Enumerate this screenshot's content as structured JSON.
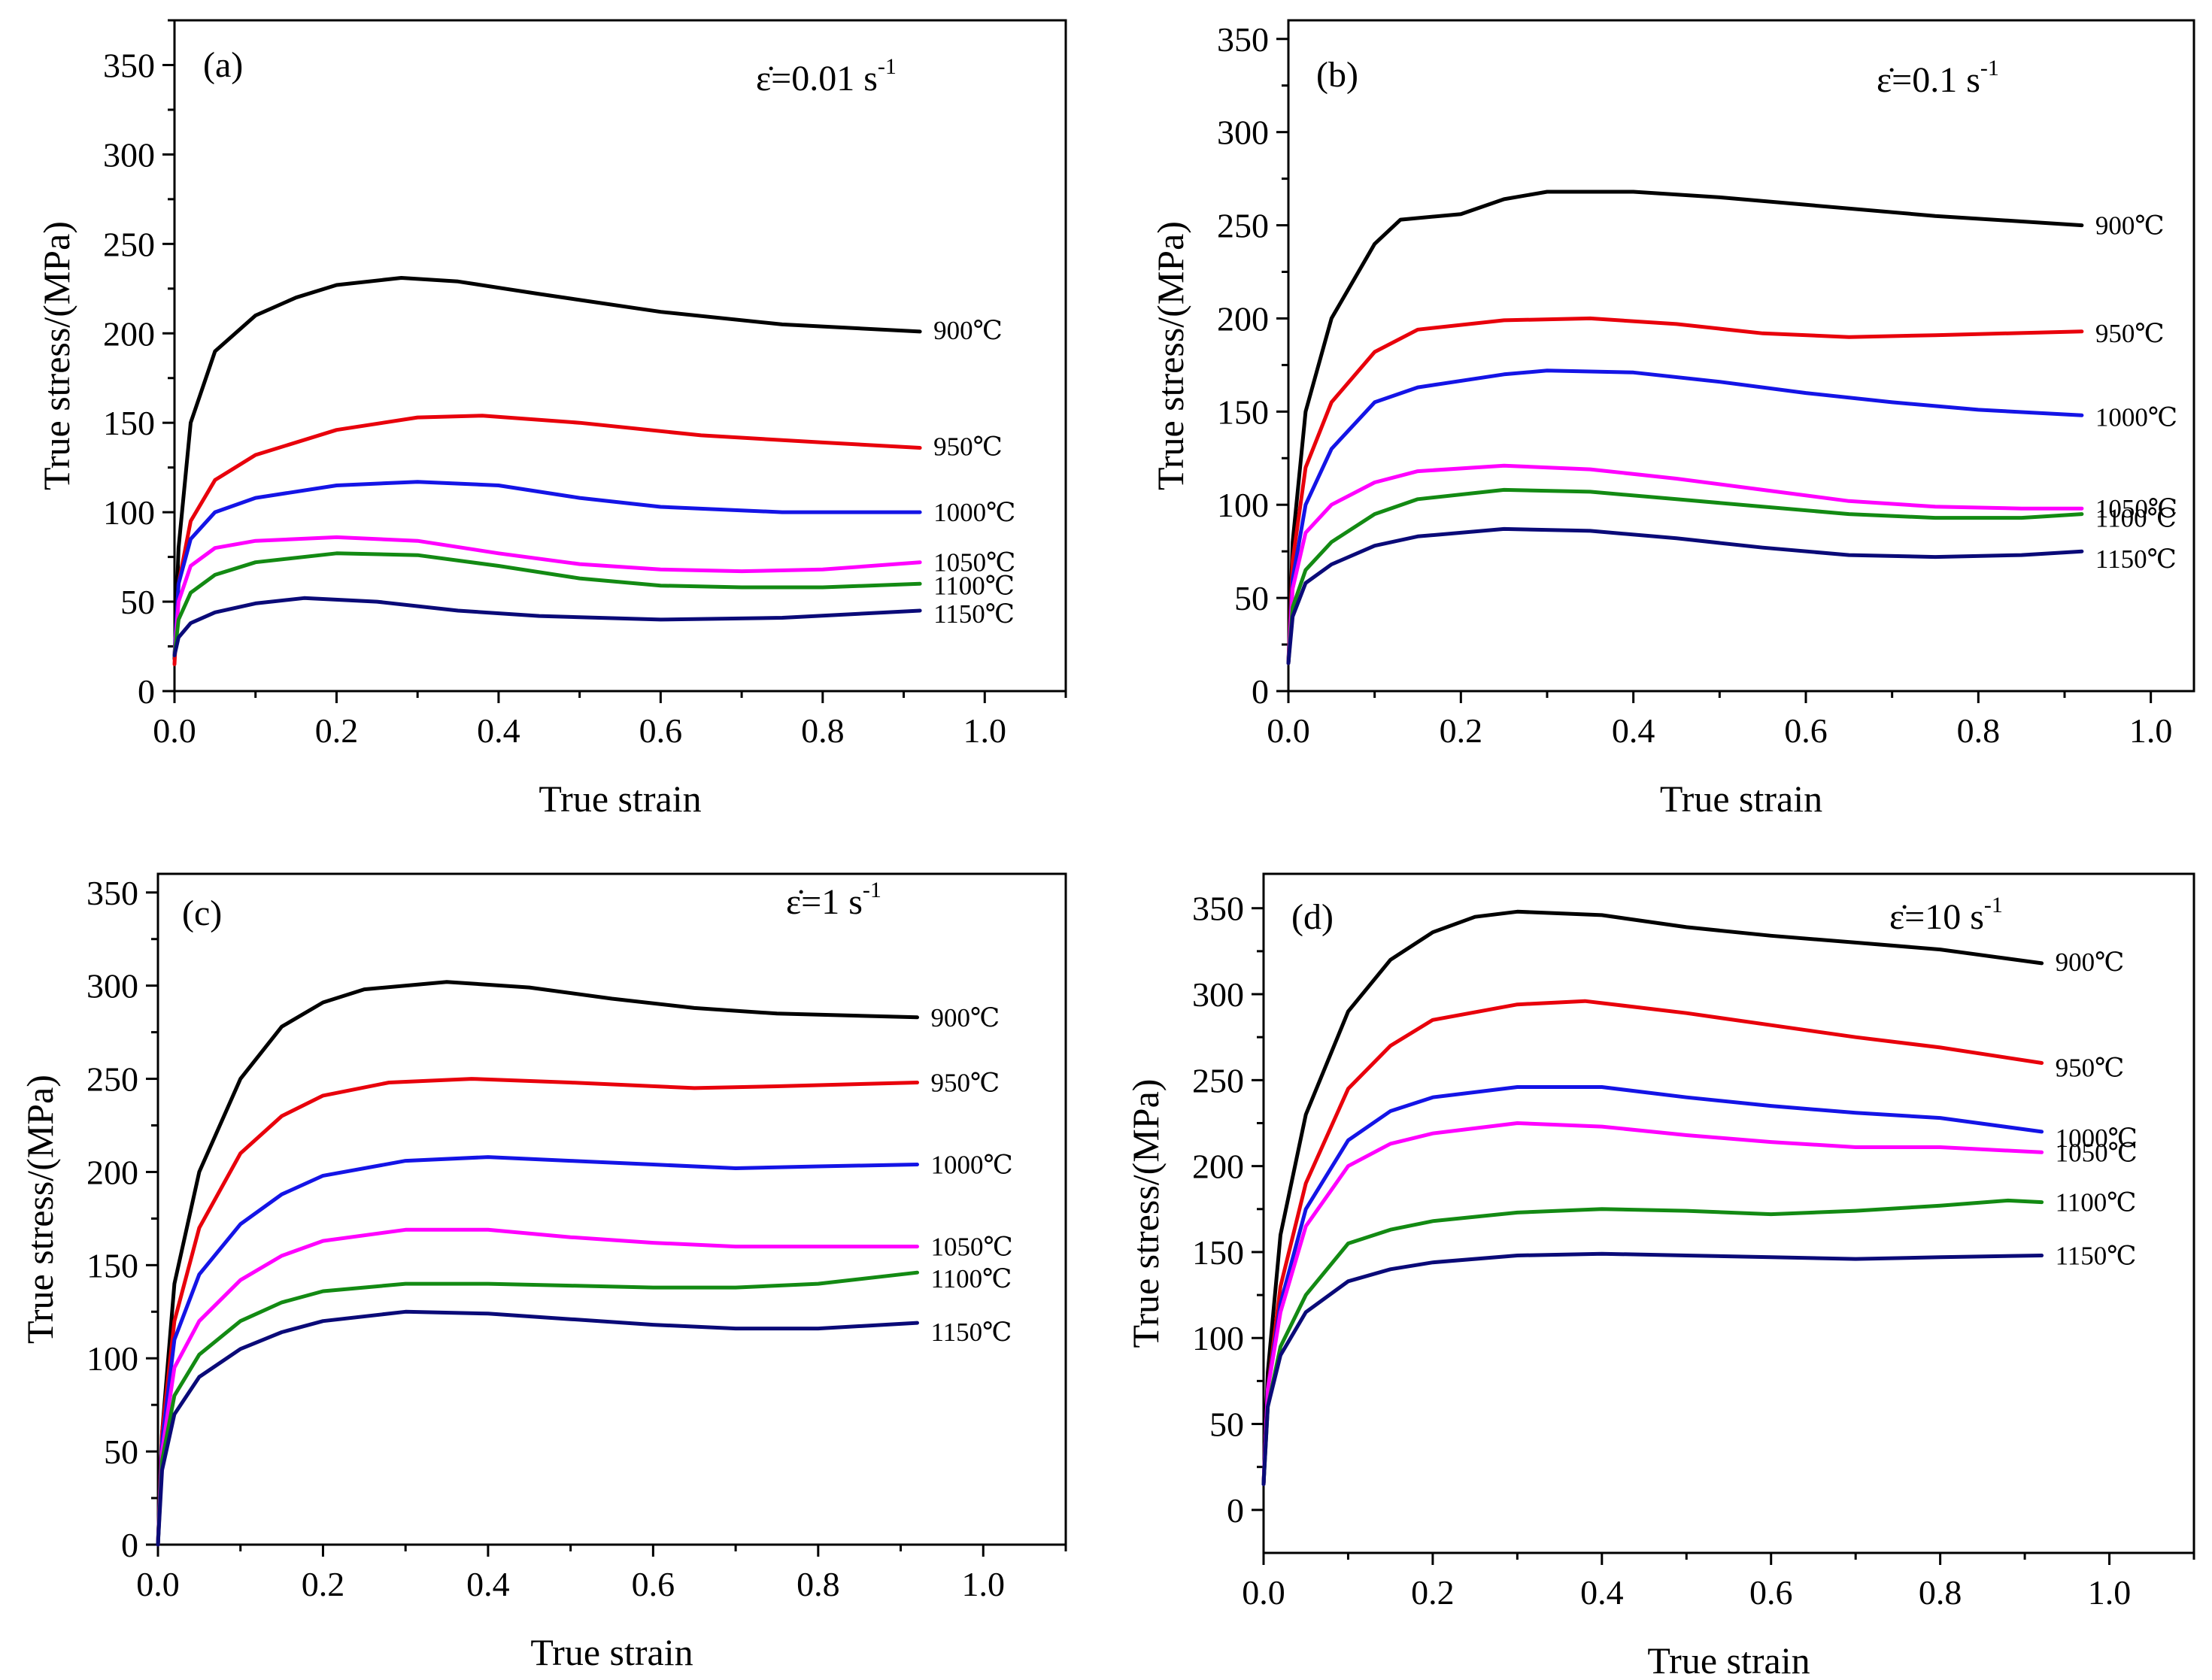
{
  "figure": {
    "temperatures": [
      "900℃",
      "950℃",
      "1000℃",
      "1050℃",
      "1100℃",
      "1150℃"
    ],
    "colors": [
      "#000000",
      "#e8000b",
      "#1414e6",
      "#ff00ff",
      "#138a13",
      "#0a0a78"
    ]
  },
  "chart_data": [
    {
      "type": "line",
      "panel": "(a)",
      "rate_symbol": "ε̇",
      "rate_text": "=0.01 s",
      "rate_exp": "-1",
      "xlabel": "True strain",
      "ylabel": "True stress/(MPa)",
      "xlim": [
        0,
        1.1
      ],
      "ylim": [
        0,
        375
      ],
      "xticks": [
        "0.0",
        "0.2",
        "0.4",
        "0.6",
        "0.8",
        "1.0"
      ],
      "yticks": [
        "0",
        "50",
        "100",
        "150",
        "200",
        "250",
        "300",
        "350"
      ],
      "series": [
        {
          "name": "900℃",
          "x": [
            0,
            0.005,
            0.02,
            0.05,
            0.1,
            0.15,
            0.2,
            0.28,
            0.35,
            0.45,
            0.6,
            0.75,
            0.92
          ],
          "y": [
            18,
            80,
            150,
            190,
            210,
            220,
            227,
            231,
            229,
            222,
            212,
            205,
            201
          ]
        },
        {
          "name": "950℃",
          "x": [
            0,
            0.005,
            0.02,
            0.05,
            0.1,
            0.2,
            0.3,
            0.38,
            0.5,
            0.65,
            0.8,
            0.92
          ],
          "y": [
            15,
            60,
            95,
            118,
            132,
            146,
            153,
            154,
            150,
            143,
            139,
            136
          ]
        },
        {
          "name": "1000℃",
          "x": [
            0,
            0.005,
            0.02,
            0.05,
            0.1,
            0.2,
            0.3,
            0.4,
            0.5,
            0.6,
            0.75,
            0.92
          ],
          "y": [
            20,
            60,
            85,
            100,
            108,
            115,
            117,
            115,
            108,
            103,
            100,
            100
          ]
        },
        {
          "name": "1050℃",
          "x": [
            0,
            0.005,
            0.02,
            0.05,
            0.1,
            0.2,
            0.3,
            0.4,
            0.5,
            0.6,
            0.7,
            0.8,
            0.92
          ],
          "y": [
            20,
            50,
            70,
            80,
            84,
            86,
            84,
            77,
            71,
            68,
            67,
            68,
            72
          ]
        },
        {
          "name": "1100℃",
          "x": [
            0,
            0.005,
            0.02,
            0.05,
            0.1,
            0.2,
            0.3,
            0.4,
            0.5,
            0.6,
            0.7,
            0.8,
            0.92
          ],
          "y": [
            20,
            40,
            55,
            65,
            72,
            77,
            76,
            70,
            63,
            59,
            58,
            58,
            60
          ]
        },
        {
          "name": "1150℃",
          "x": [
            0,
            0.005,
            0.02,
            0.05,
            0.1,
            0.16,
            0.25,
            0.35,
            0.45,
            0.6,
            0.75,
            0.92
          ],
          "y": [
            20,
            30,
            38,
            44,
            49,
            52,
            50,
            45,
            42,
            40,
            41,
            45
          ]
        }
      ]
    },
    {
      "type": "line",
      "panel": "(b)",
      "rate_symbol": "ε̇",
      "rate_text": "=0.1 s",
      "rate_exp": "-1",
      "xlabel": "True strain",
      "ylabel": "True stress/(MPa)",
      "xlim": [
        0,
        1.05
      ],
      "ylim": [
        0,
        360
      ],
      "xticks": [
        "0.0",
        "0.2",
        "0.4",
        "0.6",
        "0.8",
        "1.0"
      ],
      "yticks": [
        "0",
        "50",
        "100",
        "150",
        "200",
        "250",
        "300",
        "350"
      ],
      "series": [
        {
          "name": "900℃",
          "x": [
            0,
            0.005,
            0.02,
            0.05,
            0.1,
            0.13,
            0.2,
            0.25,
            0.3,
            0.4,
            0.5,
            0.6,
            0.75,
            0.92
          ],
          "y": [
            15,
            80,
            150,
            200,
            240,
            253,
            256,
            264,
            268,
            268,
            265,
            261,
            255,
            250
          ]
        },
        {
          "name": "950℃",
          "x": [
            0,
            0.005,
            0.02,
            0.05,
            0.1,
            0.15,
            0.25,
            0.35,
            0.45,
            0.55,
            0.65,
            0.75,
            0.92
          ],
          "y": [
            15,
            70,
            120,
            155,
            182,
            194,
            199,
            200,
            197,
            192,
            190,
            191,
            193
          ]
        },
        {
          "name": "1000℃",
          "x": [
            0,
            0.005,
            0.02,
            0.05,
            0.1,
            0.15,
            0.25,
            0.3,
            0.4,
            0.5,
            0.6,
            0.7,
            0.8,
            0.92
          ],
          "y": [
            15,
            60,
            100,
            130,
            155,
            163,
            170,
            172,
            171,
            166,
            160,
            155,
            151,
            148
          ]
        },
        {
          "name": "1050℃",
          "x": [
            0,
            0.005,
            0.02,
            0.05,
            0.1,
            0.15,
            0.25,
            0.35,
            0.45,
            0.55,
            0.65,
            0.75,
            0.85,
            0.92
          ],
          "y": [
            15,
            55,
            85,
            100,
            112,
            118,
            121,
            119,
            114,
            108,
            102,
            99,
            98,
            98
          ]
        },
        {
          "name": "1100℃",
          "x": [
            0,
            0.005,
            0.02,
            0.05,
            0.1,
            0.15,
            0.25,
            0.35,
            0.45,
            0.55,
            0.65,
            0.75,
            0.85,
            0.92
          ],
          "y": [
            15,
            45,
            65,
            80,
            95,
            103,
            108,
            107,
            103,
            99,
            95,
            93,
            93,
            95
          ]
        },
        {
          "name": "1150℃",
          "x": [
            0,
            0.005,
            0.02,
            0.05,
            0.1,
            0.15,
            0.25,
            0.35,
            0.45,
            0.55,
            0.65,
            0.75,
            0.85,
            0.92
          ],
          "y": [
            15,
            40,
            58,
            68,
            78,
            83,
            87,
            86,
            82,
            77,
            73,
            72,
            73,
            75
          ]
        }
      ]
    },
    {
      "type": "line",
      "panel": "(c)",
      "rate_symbol": "ε̇",
      "rate_text": "=1 s",
      "rate_exp": "-1",
      "xlabel": "True strain",
      "ylabel": "True stress/(MPa)",
      "xlim": [
        0,
        1.1
      ],
      "ylim": [
        0,
        360
      ],
      "xticks": [
        "0.0",
        "0.2",
        "0.4",
        "0.6",
        "0.8",
        "1.0"
      ],
      "yticks": [
        "0",
        "50",
        "100",
        "150",
        "200",
        "250",
        "300",
        "350"
      ],
      "series": [
        {
          "name": "900℃",
          "x": [
            0,
            0.005,
            0.02,
            0.05,
            0.1,
            0.15,
            0.2,
            0.25,
            0.35,
            0.45,
            0.55,
            0.65,
            0.75,
            0.92
          ],
          "y": [
            0,
            60,
            140,
            200,
            250,
            278,
            291,
            298,
            302,
            299,
            293,
            288,
            285,
            283
          ]
        },
        {
          "name": "950℃",
          "x": [
            0,
            0.005,
            0.02,
            0.05,
            0.1,
            0.15,
            0.2,
            0.28,
            0.38,
            0.5,
            0.65,
            0.75,
            0.92
          ],
          "y": [
            0,
            60,
            120,
            170,
            210,
            230,
            241,
            248,
            250,
            248,
            245,
            246,
            248
          ]
        },
        {
          "name": "1000℃",
          "x": [
            0,
            0.005,
            0.02,
            0.05,
            0.1,
            0.15,
            0.2,
            0.3,
            0.4,
            0.5,
            0.6,
            0.7,
            0.8,
            0.92
          ],
          "y": [
            0,
            55,
            110,
            145,
            172,
            188,
            198,
            206,
            208,
            206,
            204,
            202,
            203,
            204
          ]
        },
        {
          "name": "1050℃",
          "x": [
            0,
            0.005,
            0.02,
            0.05,
            0.1,
            0.15,
            0.2,
            0.3,
            0.4,
            0.5,
            0.6,
            0.7,
            0.8,
            0.92
          ],
          "y": [
            0,
            50,
            95,
            120,
            142,
            155,
            163,
            169,
            169,
            165,
            162,
            160,
            160,
            160
          ]
        },
        {
          "name": "1100℃",
          "x": [
            0,
            0.005,
            0.02,
            0.05,
            0.1,
            0.15,
            0.2,
            0.3,
            0.4,
            0.5,
            0.6,
            0.7,
            0.8,
            0.92
          ],
          "y": [
            0,
            45,
            80,
            102,
            120,
            130,
            136,
            140,
            140,
            139,
            138,
            138,
            140,
            146
          ]
        },
        {
          "name": "1150℃",
          "x": [
            0,
            0.005,
            0.02,
            0.05,
            0.1,
            0.15,
            0.2,
            0.3,
            0.4,
            0.5,
            0.6,
            0.7,
            0.8,
            0.92
          ],
          "y": [
            0,
            40,
            70,
            90,
            105,
            114,
            120,
            125,
            124,
            121,
            118,
            116,
            116,
            119
          ]
        }
      ]
    },
    {
      "type": "line",
      "panel": "(d)",
      "rate_symbol": "ε̇",
      "rate_text": "=10 s",
      "rate_exp": "-1",
      "xlabel": "True strain",
      "ylabel": "True stress/(MPa)",
      "xlim": [
        0,
        1.1
      ],
      "ylim": [
        -25,
        370
      ],
      "xticks": [
        "0.0",
        "0.2",
        "0.4",
        "0.6",
        "0.8",
        "1.0"
      ],
      "yticks": [
        "0",
        "50",
        "100",
        "150",
        "200",
        "250",
        "300",
        "350"
      ],
      "series": [
        {
          "name": "900℃",
          "x": [
            0,
            0.005,
            0.02,
            0.05,
            0.1,
            0.15,
            0.2,
            0.25,
            0.3,
            0.4,
            0.5,
            0.6,
            0.7,
            0.8,
            0.92
          ],
          "y": [
            15,
            80,
            160,
            230,
            290,
            320,
            336,
            345,
            348,
            346,
            339,
            334,
            330,
            326,
            318
          ]
        },
        {
          "name": "950℃",
          "x": [
            0,
            0.005,
            0.02,
            0.05,
            0.1,
            0.15,
            0.2,
            0.3,
            0.38,
            0.5,
            0.6,
            0.7,
            0.8,
            0.92
          ],
          "y": [
            15,
            70,
            130,
            190,
            245,
            270,
            285,
            294,
            296,
            289,
            282,
            275,
            269,
            260
          ]
        },
        {
          "name": "1000℃",
          "x": [
            0,
            0.005,
            0.02,
            0.05,
            0.1,
            0.15,
            0.2,
            0.3,
            0.4,
            0.5,
            0.6,
            0.7,
            0.8,
            0.92
          ],
          "y": [
            15,
            70,
            120,
            175,
            215,
            232,
            240,
            246,
            246,
            240,
            235,
            231,
            228,
            220
          ]
        },
        {
          "name": "1050℃",
          "x": [
            0,
            0.005,
            0.02,
            0.05,
            0.1,
            0.15,
            0.2,
            0.3,
            0.4,
            0.5,
            0.6,
            0.7,
            0.8,
            0.92
          ],
          "y": [
            15,
            70,
            115,
            165,
            200,
            213,
            219,
            225,
            223,
            218,
            214,
            211,
            211,
            208
          ]
        },
        {
          "name": "1100℃",
          "x": [
            0,
            0.005,
            0.02,
            0.05,
            0.1,
            0.15,
            0.2,
            0.3,
            0.4,
            0.5,
            0.6,
            0.7,
            0.8,
            0.88,
            0.92
          ],
          "y": [
            15,
            60,
            95,
            125,
            155,
            163,
            168,
            173,
            175,
            174,
            172,
            174,
            177,
            180,
            179
          ]
        },
        {
          "name": "1150℃",
          "x": [
            0,
            0.005,
            0.02,
            0.05,
            0.1,
            0.15,
            0.2,
            0.3,
            0.4,
            0.5,
            0.6,
            0.7,
            0.8,
            0.92
          ],
          "y": [
            15,
            60,
            90,
            115,
            133,
            140,
            144,
            148,
            149,
            148,
            147,
            146,
            147,
            148
          ]
        }
      ]
    }
  ]
}
